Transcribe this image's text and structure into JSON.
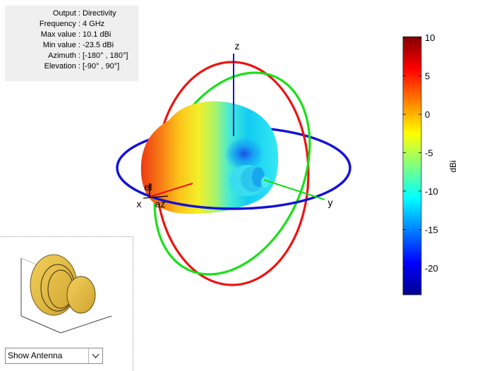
{
  "info": {
    "rows": [
      {
        "key": "Output :",
        "value": "Directivity"
      },
      {
        "key": "Frequency :",
        "value": "4 GHz"
      },
      {
        "key": "Max value :",
        "value": "10.1 dBi"
      },
      {
        "key": "Min value :",
        "value": "-23.5 dBi"
      },
      {
        "key": "Azimuth :",
        "value": "[-180° , 180°]"
      },
      {
        "key": "Elevation :",
        "value": "[-90° , 90°]"
      }
    ]
  },
  "axes": {
    "x_label": "x",
    "y_label": "y",
    "z_label": "z",
    "az_label": "az",
    "el_label": "el",
    "colors": {
      "x": "#ee1111",
      "y": "#11dd11",
      "z": "#1111dd"
    }
  },
  "colorbar": {
    "unit": "dBi",
    "range": [
      -23.5,
      10.1
    ],
    "ticks": [
      "10",
      "5",
      "0",
      "-5",
      "-10",
      "-15",
      "-20"
    ],
    "colormap": "jet"
  },
  "antenna_view": {
    "selected": "Show Antenna",
    "dropdown_icon": "chevron-down-icon",
    "antenna_color": "#e3bb3e"
  }
}
